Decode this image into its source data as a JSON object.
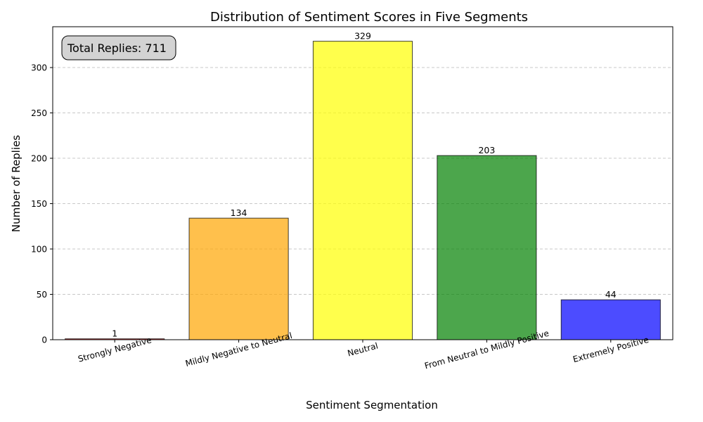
{
  "chart_data": {
    "type": "bar",
    "title": "Distribution of Sentiment Scores in Five Segments",
    "xlabel": "Sentiment Segmentation",
    "ylabel": "Number of Replies",
    "categories": [
      "Strongly Negative",
      "Mildly Negative to Neutral",
      "Neutral",
      "From Neutral to Mildly Positive",
      "Extremely Positive"
    ],
    "values": [
      1,
      134,
      329,
      203,
      44
    ],
    "colors": [
      "#ff0000",
      "#ffa500",
      "#ffff00",
      "#008000",
      "#0000ff"
    ],
    "ylim": [
      0,
      345
    ],
    "yticks": [
      0,
      50,
      100,
      150,
      200,
      250,
      300
    ],
    "grid": "y-dashed",
    "annotation": "Total Replies: 711"
  }
}
